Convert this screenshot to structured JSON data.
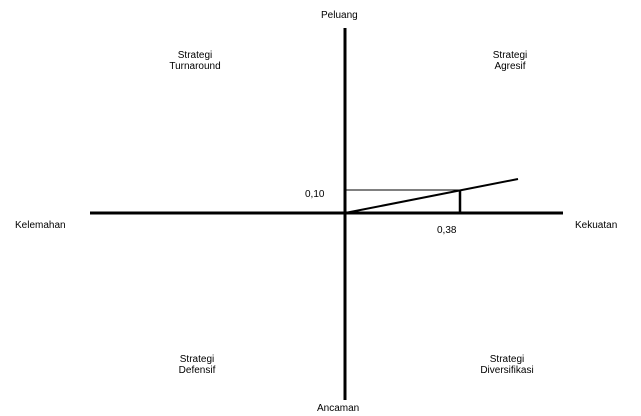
{
  "axes": {
    "top": "Peluang",
    "bottom": "Ancaman",
    "left": "Kelemahan",
    "right": "Kekuatan"
  },
  "quadrants": {
    "top_left": {
      "line1": "Strategi",
      "line2": "Turnaround"
    },
    "top_right": {
      "line1": "Strategi",
      "line2": "Agresif"
    },
    "bottom_left": {
      "line1": "Strategi",
      "line2": "Defensif"
    },
    "bottom_right": {
      "line1": "Strategi",
      "line2": "Diversifikasi"
    }
  },
  "point": {
    "x_label": "0,38",
    "y_label": "0,10",
    "x": 0.38,
    "y": 0.1
  },
  "colors": {
    "line": "#000000",
    "text": "#000000"
  }
}
